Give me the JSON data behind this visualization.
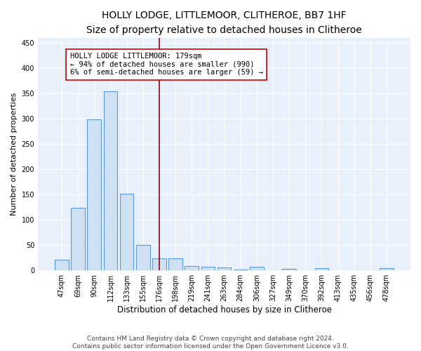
{
  "title": "HOLLY LODGE, LITTLEMOOR, CLITHEROE, BB7 1HF",
  "subtitle": "Size of property relative to detached houses in Clitheroe",
  "xlabel": "Distribution of detached houses by size in Clitheroe",
  "ylabel": "Number of detached properties",
  "bar_color": "#cfe0f3",
  "bar_edge_color": "#5b9bd5",
  "background_color": "#e8f0fb",
  "grid_color": "#ffffff",
  "categories": [
    "47sqm",
    "69sqm",
    "90sqm",
    "112sqm",
    "133sqm",
    "155sqm",
    "176sqm",
    "198sqm",
    "219sqm",
    "241sqm",
    "263sqm",
    "284sqm",
    "306sqm",
    "327sqm",
    "349sqm",
    "370sqm",
    "392sqm",
    "413sqm",
    "435sqm",
    "456sqm",
    "478sqm"
  ],
  "values": [
    20,
    123,
    298,
    354,
    151,
    50,
    23,
    23,
    8,
    6,
    5,
    1,
    6,
    0,
    3,
    0,
    4,
    0,
    0,
    0,
    4
  ],
  "ylim": [
    0,
    460
  ],
  "yticks": [
    0,
    50,
    100,
    150,
    200,
    250,
    300,
    350,
    400,
    450
  ],
  "vline_x": 6,
  "vline_color": "#8b0000",
  "annotation_text": "HOLLY LODGE LITTLEMOOR: 179sqm\n← 94% of detached houses are smaller (990)\n6% of semi-detached houses are larger (59) →",
  "annotation_box_color": "#ffffff",
  "annotation_box_edge": "#cc0000",
  "footer_text": "Contains HM Land Registry data © Crown copyright and database right 2024.\nContains public sector information licensed under the Open Government Licence v3.0.",
  "title_fontsize": 10,
  "subtitle_fontsize": 9,
  "xlabel_fontsize": 8.5,
  "ylabel_fontsize": 8,
  "tick_fontsize": 7,
  "annotation_fontsize": 7.5,
  "footer_fontsize": 6.5
}
